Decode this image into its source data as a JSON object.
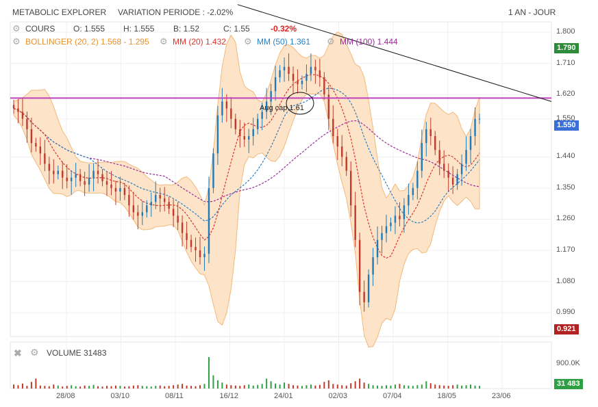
{
  "header": {
    "title": "METABOLIC EXPLORER",
    "variation": "VARIATION PERIODE : -2.02%",
    "period": "1 AN - JOUR"
  },
  "legend": {
    "cours_label": "COURS",
    "open": "O: 1.555",
    "high": "H: 1.555",
    "low": "B: 1.52",
    "close": "C: 1.55",
    "change": "-0.32%",
    "bollinger": "BOLLINGER (20, 2)  1.568 - 1.295",
    "mm20": "MM (20)  1.432",
    "mm50": "MM (50)  1.361",
    "mm100": "MM (100)  1.444"
  },
  "annotation": "Aug cap 1.61",
  "badges": {
    "top": "1.790",
    "last": "1.550",
    "bottom": "0.921",
    "volume": "31 483"
  },
  "volume_panel": {
    "label": "VOLUME  31483",
    "tick": "900.0K"
  },
  "colors": {
    "up": "#1e7ab8",
    "down": "#c0392b",
    "bollinger_fill": "#fde3c7",
    "bollinger_line": "#f2b97a",
    "mm20": "#d9342b",
    "mm50": "#2a7ec3",
    "mm100": "#9b2a9b",
    "hline": "#c040c0",
    "badge_top": "#2e8b3a",
    "badge_last": "#3a6fd8",
    "badge_bottom": "#b22222",
    "badge_vol": "#2ea043"
  },
  "chart_data": {
    "type": "candlestick",
    "x_tick_labels": [
      "28/08",
      "03/10",
      "08/11",
      "16/12",
      "24/01",
      "02/03",
      "07/04",
      "18/05",
      "23/06"
    ],
    "y_tick_labels": [
      "1.800",
      "1.710",
      "1.620",
      "1.550",
      "1.440",
      "1.350",
      "1.260",
      "1.170",
      "1.080",
      "0.990"
    ],
    "ylim": [
      0.921,
      1.83
    ],
    "horizontal_line": 1.61,
    "trend_line": {
      "from": {
        "t": 0.42,
        "v": 1.88
      },
      "to": {
        "t": 1.0,
        "v": 1.6
      }
    },
    "close_series": [
      1.58,
      1.57,
      1.55,
      1.52,
      1.48,
      1.47,
      1.45,
      1.42,
      1.4,
      1.39,
      1.4,
      1.38,
      1.37,
      1.38,
      1.39,
      1.37,
      1.36,
      1.38,
      1.4,
      1.39,
      1.37,
      1.36,
      1.35,
      1.34,
      1.35,
      1.33,
      1.3,
      1.28,
      1.27,
      1.28,
      1.3,
      1.31,
      1.33,
      1.32,
      1.31,
      1.29,
      1.27,
      1.25,
      1.22,
      1.2,
      1.18,
      1.17,
      1.15,
      1.16,
      1.35,
      1.45,
      1.56,
      1.6,
      1.58,
      1.55,
      1.52,
      1.5,
      1.49,
      1.5,
      1.52,
      1.55,
      1.57,
      1.6,
      1.63,
      1.67,
      1.69,
      1.7,
      1.68,
      1.66,
      1.65,
      1.66,
      1.68,
      1.7,
      1.69,
      1.67,
      1.62,
      1.55,
      1.5,
      1.47,
      1.44,
      1.4,
      1.3,
      1.2,
      1.05,
      1.02,
      1.1,
      1.15,
      1.2,
      1.22,
      1.24,
      1.25,
      1.27,
      1.26,
      1.3,
      1.33,
      1.35,
      1.4,
      1.48,
      1.52,
      1.5,
      1.46,
      1.42,
      1.4,
      1.38,
      1.36,
      1.39,
      1.42,
      1.46,
      1.5,
      1.55,
      1.55
    ],
    "volume_series": [
      12,
      10,
      15,
      8,
      20,
      30,
      9,
      8,
      7,
      12,
      9,
      6,
      8,
      10,
      7,
      6,
      9,
      8,
      11,
      7,
      6,
      8,
      7,
      9,
      8,
      6,
      7,
      9,
      10,
      8,
      7,
      6,
      8,
      9,
      7,
      8,
      10,
      12,
      14,
      9,
      8,
      7,
      10,
      14,
      95,
      40,
      25,
      18,
      12,
      10,
      9,
      8,
      10,
      12,
      9,
      11,
      14,
      30,
      22,
      15,
      12,
      18,
      14,
      10,
      9,
      8,
      10,
      12,
      9,
      11,
      20,
      25,
      14,
      12,
      10,
      9,
      16,
      22,
      30,
      18,
      14,
      10,
      9,
      8,
      10,
      9,
      12,
      14,
      10,
      9,
      8,
      10,
      12,
      22,
      16,
      12,
      10,
      9,
      8,
      10,
      12,
      9,
      10,
      12,
      9,
      8
    ],
    "series": [
      {
        "name": "COURS",
        "values": "close_series"
      },
      {
        "name": "MM (20)",
        "value": 1.432
      },
      {
        "name": "MM (50)",
        "value": 1.361
      },
      {
        "name": "MM (100)",
        "value": 1.444
      },
      {
        "name": "BOLLINGER (20, 2)",
        "upper": 1.568,
        "lower": 1.295
      }
    ]
  }
}
